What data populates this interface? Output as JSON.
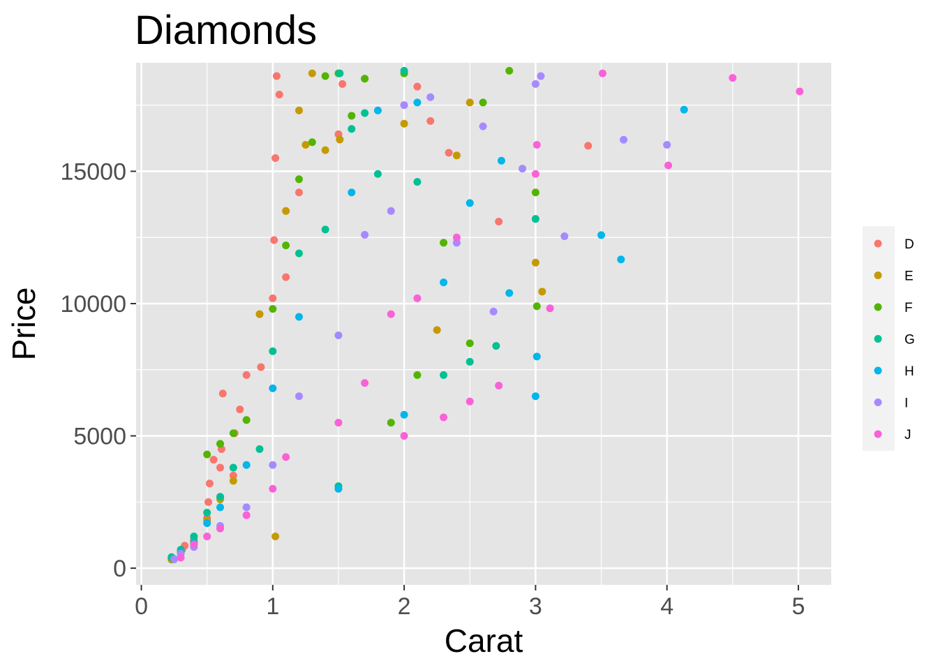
{
  "chart_data": {
    "type": "scatter",
    "title": "Diamonds",
    "xlabel": "Carat",
    "ylabel": "Price",
    "xlim": [
      -0.04,
      5.25
    ],
    "ylim": [
      -630,
      19100
    ],
    "xticks": [
      0,
      1,
      2,
      3,
      4,
      5
    ],
    "yticks": [
      0,
      5000,
      10000,
      15000
    ],
    "grid": true,
    "legend_position": "right",
    "colors": {
      "panel_background": "#E5E5E5",
      "grid": "#FFFFFF",
      "legend_key_background": "#F2F2F2"
    },
    "series": [
      {
        "name": "D",
        "color": "#F8766D",
        "points": [
          [
            0.23,
            357
          ],
          [
            0.3,
            552
          ],
          [
            0.31,
            700
          ],
          [
            0.33,
            850
          ],
          [
            0.4,
            1100
          ],
          [
            0.5,
            1900
          ],
          [
            0.51,
            2500
          ],
          [
            0.52,
            3200
          ],
          [
            0.55,
            4100
          ],
          [
            0.6,
            3800
          ],
          [
            0.61,
            4500
          ],
          [
            0.62,
            6600
          ],
          [
            0.7,
            3500
          ],
          [
            0.71,
            5100
          ],
          [
            0.75,
            6000
          ],
          [
            0.8,
            7300
          ],
          [
            0.9,
            9600
          ],
          [
            0.91,
            7600
          ],
          [
            1.0,
            10200
          ],
          [
            1.01,
            12400
          ],
          [
            1.02,
            15500
          ],
          [
            1.03,
            18600
          ],
          [
            1.05,
            17900
          ],
          [
            1.1,
            11000
          ],
          [
            1.2,
            14200
          ],
          [
            1.5,
            16400
          ],
          [
            1.53,
            18300
          ],
          [
            2.0,
            17500
          ],
          [
            2.1,
            18200
          ],
          [
            2.2,
            16900
          ],
          [
            2.34,
            15700
          ],
          [
            2.72,
            13100
          ],
          [
            3.4,
            15964
          ]
        ]
      },
      {
        "name": "E",
        "color": "#C49A00",
        "points": [
          [
            0.23,
            326
          ],
          [
            0.3,
            600
          ],
          [
            0.4,
            900
          ],
          [
            0.5,
            1800
          ],
          [
            0.6,
            2600
          ],
          [
            0.7,
            3300
          ],
          [
            0.9,
            9600
          ],
          [
            1.02,
            1200
          ],
          [
            1.1,
            13500
          ],
          [
            1.2,
            17300
          ],
          [
            1.25,
            16000
          ],
          [
            1.3,
            18700
          ],
          [
            1.4,
            15800
          ],
          [
            1.51,
            16200
          ],
          [
            1.7,
            18500
          ],
          [
            2.0,
            16800
          ],
          [
            2.25,
            9000
          ],
          [
            2.4,
            15600
          ],
          [
            2.5,
            17600
          ],
          [
            3.0,
            11548
          ],
          [
            3.05,
            10453
          ]
        ]
      },
      {
        "name": "F",
        "color": "#53B400",
        "points": [
          [
            0.23,
            400
          ],
          [
            0.3,
            650
          ],
          [
            0.4,
            1000
          ],
          [
            0.5,
            4300
          ],
          [
            0.6,
            4700
          ],
          [
            0.7,
            5100
          ],
          [
            0.8,
            5600
          ],
          [
            1.0,
            9800
          ],
          [
            1.1,
            12200
          ],
          [
            1.2,
            14700
          ],
          [
            1.3,
            16100
          ],
          [
            1.4,
            18600
          ],
          [
            1.5,
            18700
          ],
          [
            1.6,
            17100
          ],
          [
            1.7,
            18500
          ],
          [
            1.9,
            5500
          ],
          [
            2.0,
            18700
          ],
          [
            2.1,
            7300
          ],
          [
            2.3,
            12300
          ],
          [
            2.5,
            8500
          ],
          [
            2.6,
            17600
          ],
          [
            2.8,
            18800
          ],
          [
            3.0,
            14200
          ],
          [
            3.01,
            9900
          ]
        ]
      },
      {
        "name": "G",
        "color": "#00C094",
        "points": [
          [
            0.23,
            420
          ],
          [
            0.3,
            700
          ],
          [
            0.4,
            1200
          ],
          [
            0.5,
            2100
          ],
          [
            0.6,
            2700
          ],
          [
            0.7,
            3800
          ],
          [
            0.9,
            4500
          ],
          [
            1.0,
            8200
          ],
          [
            1.2,
            11900
          ],
          [
            1.4,
            12800
          ],
          [
            1.5,
            3100
          ],
          [
            1.51,
            18700
          ],
          [
            1.6,
            16600
          ],
          [
            1.7,
            17200
          ],
          [
            1.8,
            14900
          ],
          [
            2.0,
            18800
          ],
          [
            2.1,
            14600
          ],
          [
            2.3,
            7300
          ],
          [
            2.5,
            7800
          ],
          [
            2.7,
            8400
          ],
          [
            3.0,
            13200
          ]
        ]
      },
      {
        "name": "H",
        "color": "#00B6EB",
        "points": [
          [
            0.25,
            340
          ],
          [
            0.3,
            600
          ],
          [
            0.4,
            950
          ],
          [
            0.5,
            1700
          ],
          [
            0.6,
            2300
          ],
          [
            0.8,
            3900
          ],
          [
            1.0,
            6800
          ],
          [
            1.2,
            9500
          ],
          [
            1.5,
            3000
          ],
          [
            1.6,
            14200
          ],
          [
            1.8,
            17300
          ],
          [
            2.0,
            5800
          ],
          [
            2.1,
            17600
          ],
          [
            2.3,
            10800
          ],
          [
            2.5,
            13800
          ],
          [
            2.74,
            15400
          ],
          [
            2.8,
            10400
          ],
          [
            3.0,
            6500
          ],
          [
            3.01,
            8000
          ],
          [
            3.5,
            12587
          ],
          [
            3.65,
            11668
          ],
          [
            4.13,
            17329
          ]
        ]
      },
      {
        "name": "I",
        "color": "#A58AFF",
        "points": [
          [
            0.25,
            350
          ],
          [
            0.3,
            550
          ],
          [
            0.4,
            800
          ],
          [
            0.6,
            1600
          ],
          [
            0.8,
            2300
          ],
          [
            1.0,
            3900
          ],
          [
            1.2,
            6500
          ],
          [
            1.5,
            8800
          ],
          [
            1.7,
            12600
          ],
          [
            1.9,
            13500
          ],
          [
            2.0,
            17500
          ],
          [
            2.2,
            17800
          ],
          [
            2.4,
            12300
          ],
          [
            2.6,
            16700
          ],
          [
            2.68,
            9700
          ],
          [
            2.9,
            15100
          ],
          [
            3.0,
            18300
          ],
          [
            3.04,
            18600
          ],
          [
            3.22,
            12545
          ],
          [
            3.67,
            16193
          ],
          [
            4.0,
            16000
          ]
        ]
      },
      {
        "name": "J",
        "color": "#FB61D7",
        "points": [
          [
            0.3,
            400
          ],
          [
            0.4,
            900
          ],
          [
            0.5,
            1200
          ],
          [
            0.6,
            1500
          ],
          [
            0.8,
            2000
          ],
          [
            1.0,
            3000
          ],
          [
            1.1,
            4200
          ],
          [
            1.5,
            5500
          ],
          [
            1.7,
            7000
          ],
          [
            1.9,
            9600
          ],
          [
            2.0,
            5000
          ],
          [
            2.1,
            10200
          ],
          [
            2.3,
            5700
          ],
          [
            2.4,
            12500
          ],
          [
            2.5,
            6300
          ],
          [
            2.72,
            6900
          ],
          [
            3.0,
            14900
          ],
          [
            3.01,
            16000
          ],
          [
            3.11,
            9823
          ],
          [
            3.51,
            18701
          ],
          [
            4.01,
            15223
          ],
          [
            4.5,
            18531
          ],
          [
            5.01,
            18018
          ]
        ]
      }
    ]
  }
}
